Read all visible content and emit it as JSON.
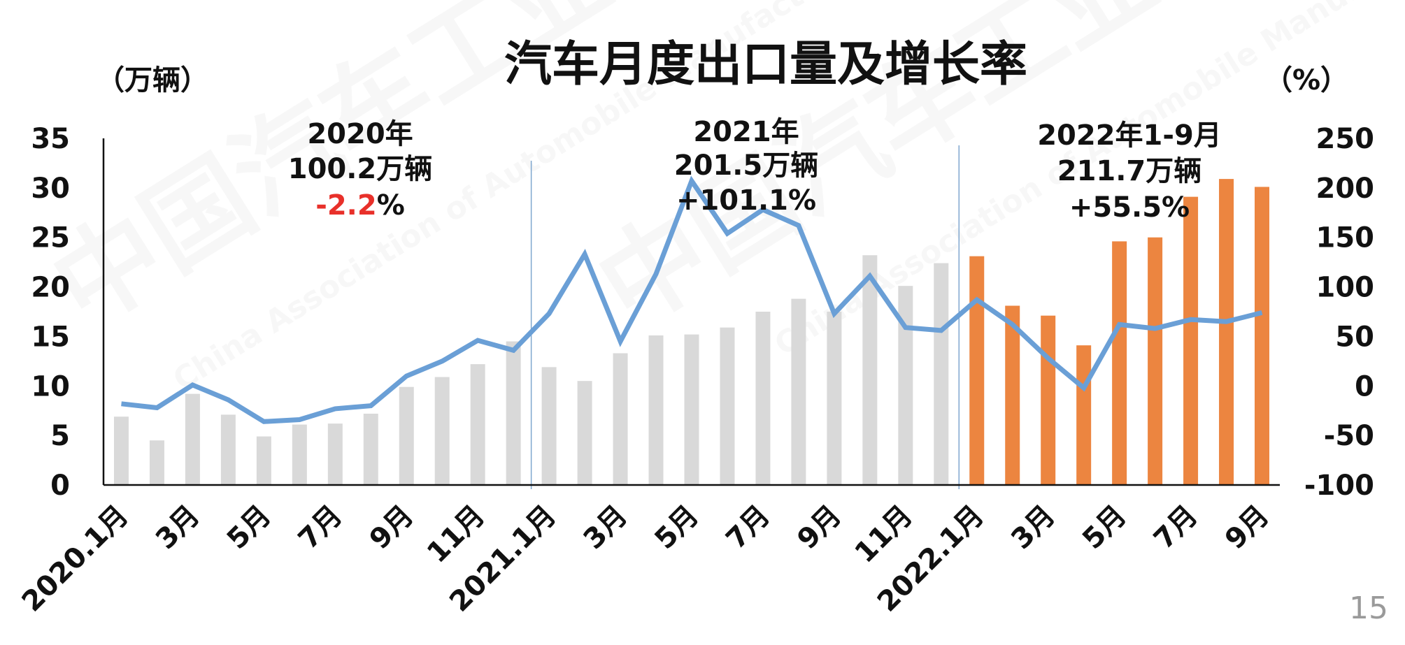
{
  "page_number": "15",
  "chart_data": {
    "type": "bar+line",
    "title": "汽车月度出口量及增长率",
    "y_left_unit": "（万辆）",
    "y_right_unit": "（%）",
    "y_left_ticks": [
      "0",
      "5",
      "10",
      "15",
      "20",
      "25",
      "30",
      "35"
    ],
    "y_right_ticks": [
      "-100",
      "-50",
      "0",
      "50",
      "100",
      "150",
      "200",
      "250"
    ],
    "ylim_left": [
      0,
      35
    ],
    "ylim_right": [
      -100,
      250
    ],
    "x_tick_labels": [
      "2020.1月",
      "3月",
      "5月",
      "7月",
      "9月",
      "11月",
      "2021.1月",
      "3月",
      "5月",
      "7月",
      "9月",
      "11月",
      "2022.1月",
      "3月",
      "5月",
      "7月",
      "9月"
    ],
    "x_tick_months": [
      1,
      3,
      5,
      7,
      9,
      11,
      13,
      15,
      17,
      19,
      21,
      23,
      25,
      27,
      29,
      31,
      33
    ],
    "months": [
      1,
      2,
      3,
      4,
      5,
      6,
      7,
      8,
      9,
      10,
      11,
      12,
      13,
      14,
      15,
      16,
      17,
      18,
      19,
      20,
      21,
      22,
      23,
      24,
      25,
      26,
      27,
      28,
      29,
      30,
      31,
      32,
      33
    ],
    "series": [
      {
        "name": "出口量",
        "unit": "万辆",
        "kind": "bar",
        "values": [
          6.9,
          4.5,
          9.2,
          7.1,
          4.9,
          6.1,
          6.2,
          7.2,
          9.9,
          10.9,
          12.2,
          14.5,
          11.9,
          10.5,
          13.3,
          15.1,
          15.2,
          15.9,
          17.5,
          18.8,
          17.5,
          23.2,
          20.1,
          22.4,
          23.1,
          18.1,
          17.1,
          14.1,
          24.6,
          25.0,
          29.1,
          30.9,
          30.1
        ],
        "color_2020_2021": "#d9d9d9",
        "color_2022": "#ec8540"
      },
      {
        "name": "增长率",
        "unit": "%",
        "kind": "line",
        "axis": "right",
        "values": [
          -18,
          -22,
          1,
          -14,
          -36,
          -34,
          -23,
          -20,
          10,
          25,
          46,
          36,
          73,
          133,
          45,
          113,
          207,
          154,
          178,
          162,
          73,
          111,
          59,
          56,
          87,
          62,
          28,
          -2,
          62,
          58,
          67,
          65,
          74
        ],
        "color": "#6a9fd6"
      }
    ],
    "annotations": [
      {
        "year": "2020年",
        "volume": "100.2万辆",
        "growth_value": "-2.2",
        "growth_suffix": "%",
        "growth_value_color": "#e8302a"
      },
      {
        "year": "2021年",
        "volume": "201.5万辆",
        "growth": "+101.1%"
      },
      {
        "year": "2022年1-9月",
        "volume": "211.7万辆",
        "growth": "+55.5%"
      }
    ],
    "separators_after_month": [
      12,
      24
    ],
    "grid": false,
    "legend": "none"
  }
}
